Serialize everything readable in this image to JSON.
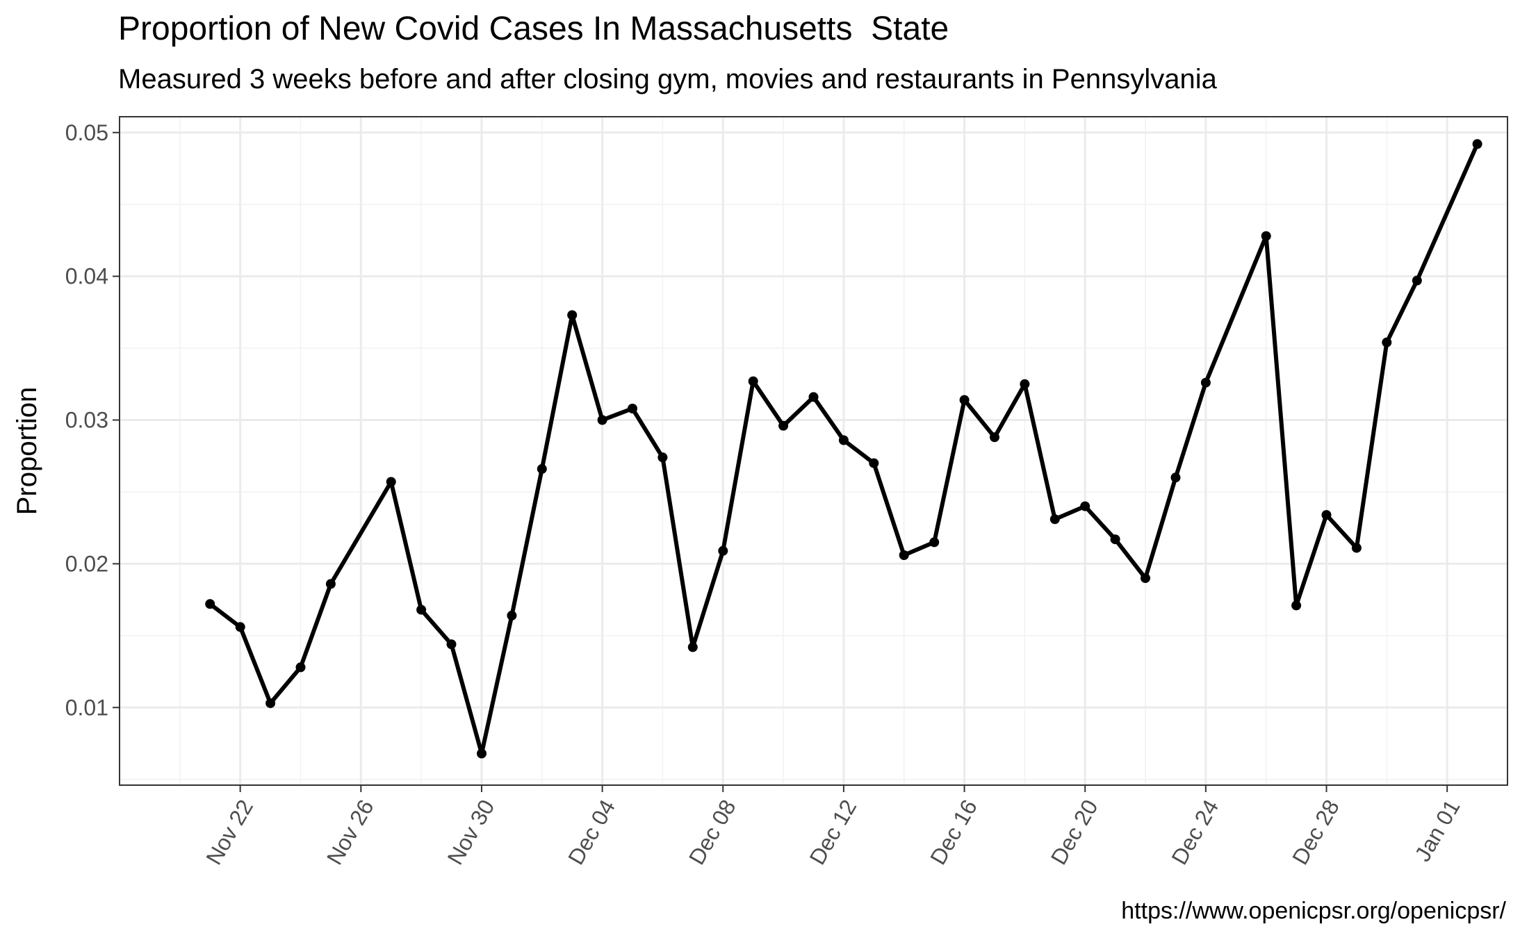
{
  "chart_data": {
    "type": "line",
    "title": "Proportion of New Covid Cases In Massachusetts  State",
    "subtitle": "Measured 3 weeks before and after closing gym, movies and restaurants in Pennsylvania",
    "caption": "https://www.openicpsr.org/openicpsr/",
    "xlabel": "",
    "ylabel": "Proportion",
    "x_tick_labels": [
      "Nov 22",
      "Nov 26",
      "Nov 30",
      "Dec 04",
      "Dec 08",
      "Dec 12",
      "Dec 16",
      "Dec 20",
      "Dec 24",
      "Dec 28",
      "Jan 01"
    ],
    "y_tick_labels": [
      "0.01",
      "0.02",
      "0.03",
      "0.04",
      "0.05"
    ],
    "ylim": [
      0.0046,
      0.0511
    ],
    "xlim": [
      "2020-11-18",
      "2021-01-03"
    ],
    "grid": true,
    "series": [
      {
        "x": [
          "2020-11-21",
          "2020-11-22",
          "2020-11-23",
          "2020-11-24",
          "2020-11-25",
          "2020-11-27",
          "2020-11-28",
          "2020-11-29",
          "2020-11-30",
          "2020-12-01",
          "2020-12-02",
          "2020-12-03",
          "2020-12-04",
          "2020-12-05",
          "2020-12-06",
          "2020-12-07",
          "2020-12-08",
          "2020-12-09",
          "2020-12-10",
          "2020-12-11",
          "2020-12-12",
          "2020-12-13",
          "2020-12-14",
          "2020-12-15",
          "2020-12-16",
          "2020-12-17",
          "2020-12-18",
          "2020-12-19",
          "2020-12-20",
          "2020-12-21",
          "2020-12-22",
          "2020-12-23",
          "2020-12-24",
          "2020-12-26",
          "2020-12-27",
          "2020-12-28",
          "2020-12-29",
          "2020-12-30",
          "2020-12-31",
          "2021-01-02"
        ],
        "values": [
          0.0172,
          0.0156,
          0.0103,
          0.0128,
          0.0186,
          0.0257,
          0.0168,
          0.0144,
          0.0068,
          0.0164,
          0.0266,
          0.0373,
          0.03,
          0.0308,
          0.0274,
          0.0142,
          0.0209,
          0.0327,
          0.0296,
          0.0316,
          0.0286,
          0.027,
          0.0206,
          0.0215,
          0.0314,
          0.0288,
          0.0325,
          0.0231,
          0.024,
          0.0217,
          0.019,
          0.026,
          0.0326,
          0.0428,
          0.0171,
          0.0234,
          0.0211,
          0.0354,
          0.0397,
          0.0492
        ]
      }
    ]
  }
}
